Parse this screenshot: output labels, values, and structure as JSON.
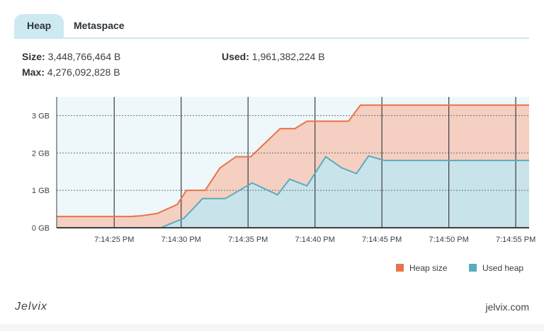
{
  "tabs": [
    {
      "label": "Heap",
      "active": true
    },
    {
      "label": "Metaspace",
      "active": false
    }
  ],
  "stats": {
    "size_label": "Size:",
    "size_value": "3,448,766,464 B",
    "max_label": "Max:",
    "max_value": "4,276,092,828 B",
    "used_label": "Used:",
    "used_value": "1,961,382,224 B"
  },
  "colors": {
    "heap_line": "#e8744a",
    "heap_fill": "#f5cfc1",
    "used_line": "#58adbc",
    "used_fill": "#c9e3ea",
    "plot_bg": "#eef7f9"
  },
  "chart_data": {
    "type": "area",
    "y_ticks": [
      "0 GB",
      "1 GB",
      "2 GB",
      "3 GB"
    ],
    "ylim": [
      0,
      3.5
    ],
    "xlim": [
      -4.3,
      31
    ],
    "x_ticks": [
      {
        "label": "7:14:25 PM",
        "x": 0
      },
      {
        "label": "7:14:30 PM",
        "x": 5
      },
      {
        "label": "7:14:35 PM",
        "x": 10
      },
      {
        "label": "7:14:40 PM",
        "x": 15
      },
      {
        "label": "7:14:45 PM",
        "x": 20
      },
      {
        "label": "7:14:50 PM",
        "x": 25
      },
      {
        "label": "7:14:55 PM",
        "x": 30
      }
    ],
    "grid": true,
    "legend_position": "bottom-right",
    "series": [
      {
        "name": "Heap size",
        "points": [
          [
            -4.3,
            0.3
          ],
          [
            1.2,
            0.3
          ],
          [
            2.0,
            0.32
          ],
          [
            3.2,
            0.38
          ],
          [
            4.7,
            0.62
          ],
          [
            5.4,
            1.0
          ],
          [
            6.8,
            1.0
          ],
          [
            7.9,
            1.6
          ],
          [
            9.1,
            1.9
          ],
          [
            10.2,
            1.9
          ],
          [
            12.4,
            2.65
          ],
          [
            13.5,
            2.65
          ],
          [
            14.4,
            2.85
          ],
          [
            17.5,
            2.85
          ],
          [
            18.4,
            3.28
          ],
          [
            31,
            3.28
          ]
        ]
      },
      {
        "name": "Used heap",
        "points": [
          [
            -4.3,
            0.0
          ],
          [
            3.5,
            0.0
          ],
          [
            4.0,
            0.08
          ],
          [
            5.2,
            0.25
          ],
          [
            6.6,
            0.78
          ],
          [
            8.3,
            0.78
          ],
          [
            10.3,
            1.2
          ],
          [
            12.2,
            0.88
          ],
          [
            13.1,
            1.3
          ],
          [
            14.4,
            1.12
          ],
          [
            15.8,
            1.9
          ],
          [
            17.0,
            1.6
          ],
          [
            18.1,
            1.45
          ],
          [
            19.0,
            1.92
          ],
          [
            20.2,
            1.8
          ],
          [
            31,
            1.8
          ]
        ]
      }
    ]
  },
  "legend": [
    {
      "label": "Heap size",
      "color": "#e8744a"
    },
    {
      "label": "Used heap",
      "color": "#58adbc"
    }
  ],
  "footer": {
    "brand": "Jelvix",
    "site": "jelvix.com"
  }
}
